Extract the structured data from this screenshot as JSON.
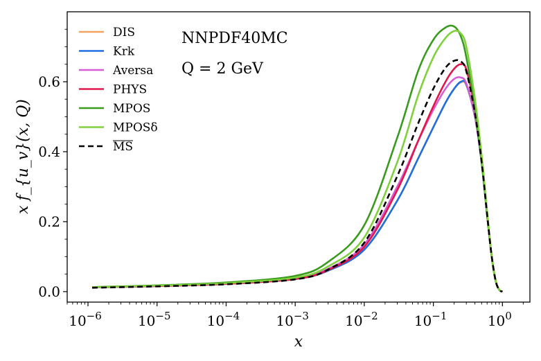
{
  "chart_data": {
    "type": "line",
    "title": "",
    "annotations": [
      "NNPDF40MC",
      "Q = 2 GeV"
    ],
    "xlabel": "x",
    "ylabel": "x f_{u_v}(x, Q)",
    "xscale": "log",
    "xlim": [
      5e-07,
      2.5
    ],
    "ylim": [
      -0.03,
      0.8
    ],
    "x_ticks": [
      1e-06,
      1e-05,
      0.0001,
      0.001,
      0.01,
      0.1,
      1
    ],
    "x_tick_labels": [
      {
        "base": "10",
        "exp": "−6"
      },
      {
        "base": "10",
        "exp": "−5"
      },
      {
        "base": "10",
        "exp": "−4"
      },
      {
        "base": "10",
        "exp": "−3"
      },
      {
        "base": "10",
        "exp": "−2"
      },
      {
        "base": "10",
        "exp": "−1"
      },
      {
        "base": "10",
        "exp": "0"
      }
    ],
    "y_ticks": [
      0.0,
      0.2,
      0.4,
      0.6
    ],
    "y_tick_labels": [
      "0.0",
      "0.2",
      "0.4",
      "0.6"
    ],
    "legend_position": "upper-left",
    "series": [
      {
        "name": "DIS",
        "color": "#f4a460",
        "dash": false,
        "x": [
          1.15e-06,
          1e-05,
          0.0001,
          0.001,
          0.003,
          0.01,
          0.03,
          0.06,
          0.1,
          0.15,
          0.2,
          0.25,
          0.3,
          0.4,
          0.5,
          0.6,
          0.7,
          0.8,
          0.9,
          1.0
        ],
        "y": [
          0.012,
          0.016,
          0.022,
          0.036,
          0.06,
          0.12,
          0.26,
          0.38,
          0.47,
          0.54,
          0.58,
          0.598,
          0.59,
          0.5,
          0.37,
          0.22,
          0.1,
          0.03,
          0.005,
          0.0
        ]
      },
      {
        "name": "Krk",
        "color": "#1f6fe0",
        "dash": false,
        "x": [
          1.15e-06,
          1e-05,
          0.0001,
          0.001,
          0.003,
          0.01,
          0.03,
          0.06,
          0.1,
          0.15,
          0.2,
          0.25,
          0.3,
          0.4,
          0.5,
          0.6,
          0.7,
          0.8,
          0.9,
          1.0
        ],
        "y": [
          0.012,
          0.016,
          0.022,
          0.036,
          0.06,
          0.12,
          0.26,
          0.38,
          0.47,
          0.54,
          0.58,
          0.6,
          0.592,
          0.5,
          0.37,
          0.22,
          0.1,
          0.03,
          0.005,
          0.0
        ]
      },
      {
        "name": "Aversa",
        "color": "#d65cd6",
        "dash": false,
        "x": [
          1.15e-06,
          1e-05,
          0.0001,
          0.001,
          0.003,
          0.01,
          0.03,
          0.06,
          0.1,
          0.15,
          0.2,
          0.25,
          0.3,
          0.4,
          0.5,
          0.6,
          0.7,
          0.8,
          0.9,
          1.0
        ],
        "y": [
          0.012,
          0.016,
          0.022,
          0.037,
          0.065,
          0.135,
          0.3,
          0.43,
          0.52,
          0.58,
          0.608,
          0.612,
          0.595,
          0.5,
          0.37,
          0.22,
          0.1,
          0.03,
          0.005,
          0.0
        ]
      },
      {
        "name": "PHYS",
        "color": "#e0174a",
        "dash": false,
        "x": [
          1.15e-06,
          1e-05,
          0.0001,
          0.001,
          0.003,
          0.01,
          0.03,
          0.06,
          0.1,
          0.15,
          0.2,
          0.25,
          0.3,
          0.4,
          0.5,
          0.6,
          0.7,
          0.8,
          0.9,
          1.0
        ],
        "y": [
          0.012,
          0.016,
          0.022,
          0.036,
          0.062,
          0.128,
          0.29,
          0.43,
          0.53,
          0.6,
          0.637,
          0.65,
          0.635,
          0.52,
          0.38,
          0.22,
          0.1,
          0.03,
          0.005,
          0.0
        ]
      },
      {
        "name": "MPOS",
        "color": "#3a9a1e",
        "dash": false,
        "x": [
          1.15e-06,
          1e-05,
          0.0001,
          0.001,
          0.003,
          0.01,
          0.03,
          0.06,
          0.1,
          0.15,
          0.2,
          0.25,
          0.3,
          0.4,
          0.5,
          0.6,
          0.7,
          0.8,
          0.9,
          1.0
        ],
        "y": [
          0.013,
          0.018,
          0.026,
          0.045,
          0.085,
          0.19,
          0.44,
          0.63,
          0.72,
          0.755,
          0.758,
          0.73,
          0.67,
          0.52,
          0.37,
          0.22,
          0.1,
          0.03,
          0.005,
          0.0
        ]
      },
      {
        "name": "MPOSδ",
        "color": "#7fd13b",
        "dash": false,
        "x": [
          1.15e-06,
          1e-05,
          0.0001,
          0.001,
          0.003,
          0.01,
          0.03,
          0.06,
          0.1,
          0.15,
          0.2,
          0.25,
          0.3,
          0.4,
          0.5,
          0.6,
          0.7,
          0.8,
          0.9,
          1.0
        ],
        "y": [
          0.012,
          0.017,
          0.024,
          0.04,
          0.072,
          0.155,
          0.37,
          0.56,
          0.67,
          0.725,
          0.745,
          0.738,
          0.7,
          0.55,
          0.39,
          0.23,
          0.1,
          0.03,
          0.005,
          0.0
        ]
      },
      {
        "name": "MS",
        "color": "#000000",
        "dash": true,
        "x": [
          1.15e-06,
          1e-05,
          0.0001,
          0.001,
          0.003,
          0.01,
          0.03,
          0.06,
          0.1,
          0.15,
          0.2,
          0.25,
          0.3,
          0.4,
          0.5,
          0.6,
          0.7,
          0.8,
          0.9,
          1.0
        ],
        "y": [
          0.011,
          0.015,
          0.021,
          0.035,
          0.063,
          0.14,
          0.33,
          0.48,
          0.58,
          0.64,
          0.66,
          0.658,
          0.63,
          0.51,
          0.37,
          0.22,
          0.1,
          0.03,
          0.005,
          0.0
        ]
      }
    ]
  }
}
